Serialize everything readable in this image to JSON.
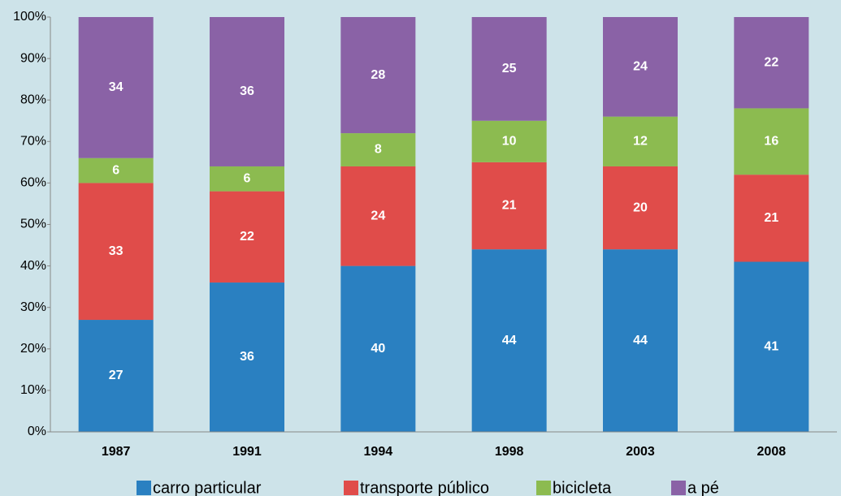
{
  "chart_data": {
    "type": "stacked-bar",
    "categories": [
      "1987",
      "1991",
      "1994",
      "1998",
      "2003",
      "2008"
    ],
    "series": [
      {
        "name": "carro particular",
        "color": "#2a80c1",
        "values": [
          27,
          36,
          40,
          44,
          44,
          41
        ]
      },
      {
        "name": "transporte público",
        "color": "#e04c4a",
        "values": [
          33,
          22,
          24,
          21,
          20,
          21
        ]
      },
      {
        "name": "bicicleta",
        "color": "#8cbb50",
        "values": [
          6,
          6,
          8,
          10,
          12,
          16
        ]
      },
      {
        "name": "a pé",
        "color": "#8a62a6",
        "values": [
          34,
          36,
          28,
          25,
          24,
          22
        ]
      }
    ],
    "ylim": [
      0,
      100
    ],
    "yticks": [
      {
        "value": 0,
        "label": "0%"
      },
      {
        "value": 10,
        "label": "10%"
      },
      {
        "value": 20,
        "label": "20%"
      },
      {
        "value": 30,
        "label": "30%"
      },
      {
        "value": 40,
        "label": "40%"
      },
      {
        "value": 50,
        "label": "50%"
      },
      {
        "value": 60,
        "label": "60%"
      },
      {
        "value": 70,
        "label": "70%"
      },
      {
        "value": 80,
        "label": "80%"
      },
      {
        "value": 90,
        "label": "90%"
      },
      {
        "value": 100,
        "label": "100%"
      }
    ],
    "legend": "bottom",
    "grid": false
  }
}
